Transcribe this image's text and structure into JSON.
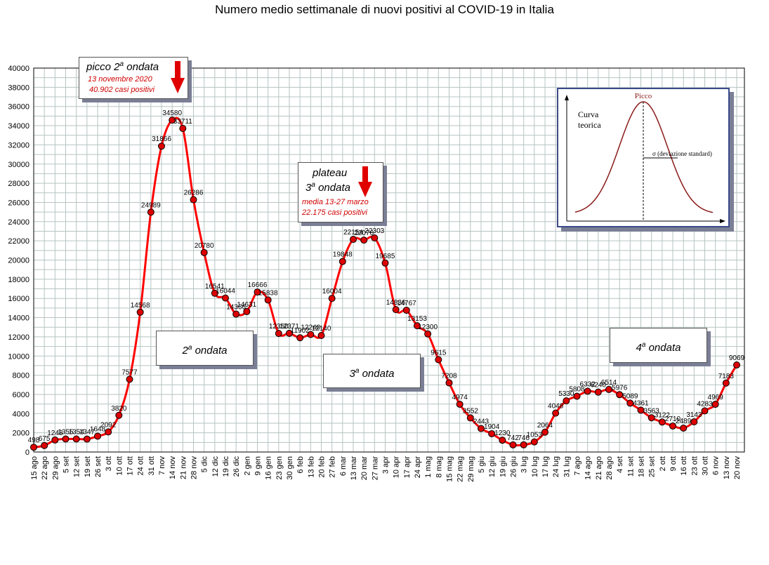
{
  "title": "Numero medio settimanale di nuovi positivi al COVID-19 in Italia",
  "chart_data": {
    "type": "line",
    "title": "Numero medio settimanale di nuovi positivi al COVID-19 in Italia",
    "ylim": [
      0,
      40000
    ],
    "yticks": [
      0,
      2000,
      4000,
      6000,
      8000,
      10000,
      12000,
      14000,
      16000,
      18000,
      20000,
      22000,
      24000,
      26000,
      28000,
      30000,
      32000,
      34000,
      36000,
      38000,
      40000
    ],
    "grid": true,
    "line_color": "#ff0000",
    "marker_color": "#dd0000",
    "x_tick_labels": [
      "15 ago",
      "22 ago",
      "29 ago",
      "5 set",
      "12 set",
      "19 set",
      "26 set",
      "3 ott",
      "10 ott",
      "17 ott",
      "24 ott",
      "31 ott",
      "7 nov",
      "14 nov",
      "21 nov",
      "28 nov",
      "5 dic",
      "12 dic",
      "19 dic",
      "26 dic",
      "2 gen",
      "9 gen",
      "16 gen",
      "23 gen",
      "30 gen",
      "6 feb",
      "13 feb",
      "20 feb",
      "27 feb",
      "6 mar",
      "13 mar",
      "20 mar",
      "27 mar",
      "3 apr",
      "10 apr",
      "17 apr",
      "24 apr",
      "1 mag",
      "8 mag",
      "15 mag",
      "22 mag",
      "29 mag",
      "5 giu",
      "12 giu",
      "19 giu",
      "26 giu",
      "3 lug",
      "10 lug",
      "17 lug",
      "24 lug",
      "31 lug",
      "7 ago",
      "14 ago",
      "21 ago",
      "28 ago",
      "4 set",
      "11 set",
      "18 set",
      "25 set",
      "2 ott",
      "9 ott",
      "16 ott",
      "23 ott",
      "30 ott",
      "6 nov",
      "13 nov",
      "20 nov"
    ],
    "values": [
      498,
      675,
      1248,
      1355,
      1354,
      1347,
      1648,
      2092,
      3820,
      7577,
      14568,
      24989,
      31866,
      34580,
      33711,
      26286,
      20780,
      16541,
      16044,
      14366,
      14631,
      16666,
      15838,
      12350,
      12371,
      11902,
      12240,
      12140,
      16004,
      19848,
      22154,
      22076,
      22303,
      19685,
      14836,
      14767,
      13153,
      12300,
      9615,
      7208,
      4974,
      3552,
      2443,
      1904,
      1230,
      742,
      746,
      1053,
      2064,
      4048,
      5330,
      5808,
      6332,
      6240,
      6514,
      5976,
      5089,
      4361,
      3563,
      3122,
      2710,
      2489,
      3143,
      4283,
      4969,
      7183,
      9069
    ],
    "value_labels": [
      "498",
      "675",
      "1248",
      "1355",
      "1354",
      "1347",
      "1648",
      "2092",
      "3820",
      "7577",
      "14568",
      "24989",
      "31866",
      "34580",
      "33711",
      "26286",
      "20780",
      "16541",
      "16044",
      "14366",
      "14631",
      "16666",
      "15838",
      "12350",
      "12371",
      "11902",
      "12240",
      "12140",
      "16004",
      "19848",
      "22154",
      "22076",
      "22303",
      "19685",
      "14836",
      "14767",
      "13153",
      "12300",
      "9615",
      "7208",
      "4974",
      "3552",
      "2443",
      "1904",
      "1230",
      "742",
      "746",
      "1053",
      "2064",
      "4048",
      "5330",
      "5808",
      "6332",
      "6240",
      "6514",
      "5976",
      "5089",
      "4361",
      "3563",
      "3122",
      "2710",
      "2489",
      "3143",
      "4283",
      "4969",
      "7183",
      "9069"
    ]
  },
  "annotations": {
    "peak2": {
      "title": "picco 2",
      "title_sup": "a",
      "title_rest": " ondata",
      "line1": "13 novembre 2020",
      "line2": "40.902 casi positivi"
    },
    "plateau3": {
      "line_a": "plateau",
      "title_num": "3",
      "title_sup": "a",
      "title_rest": " ondata",
      "line1": "media 13-27 marzo",
      "line2": "22.175 casi positivi"
    },
    "wave2": {
      "num": "2",
      "sup": "a",
      "rest": " ondata"
    },
    "wave3": {
      "num": "3",
      "sup": "a",
      "rest": " ondata"
    },
    "wave4": {
      "num": "4",
      "sup": "a",
      "rest": " ondata"
    }
  },
  "inset": {
    "peak_label": "Picco",
    "curve_label_1": "Curva",
    "curve_label_2": "teorica",
    "sigma_label": "σ  (deviazione standard)",
    "curve_color": "#8b1a1a"
  }
}
